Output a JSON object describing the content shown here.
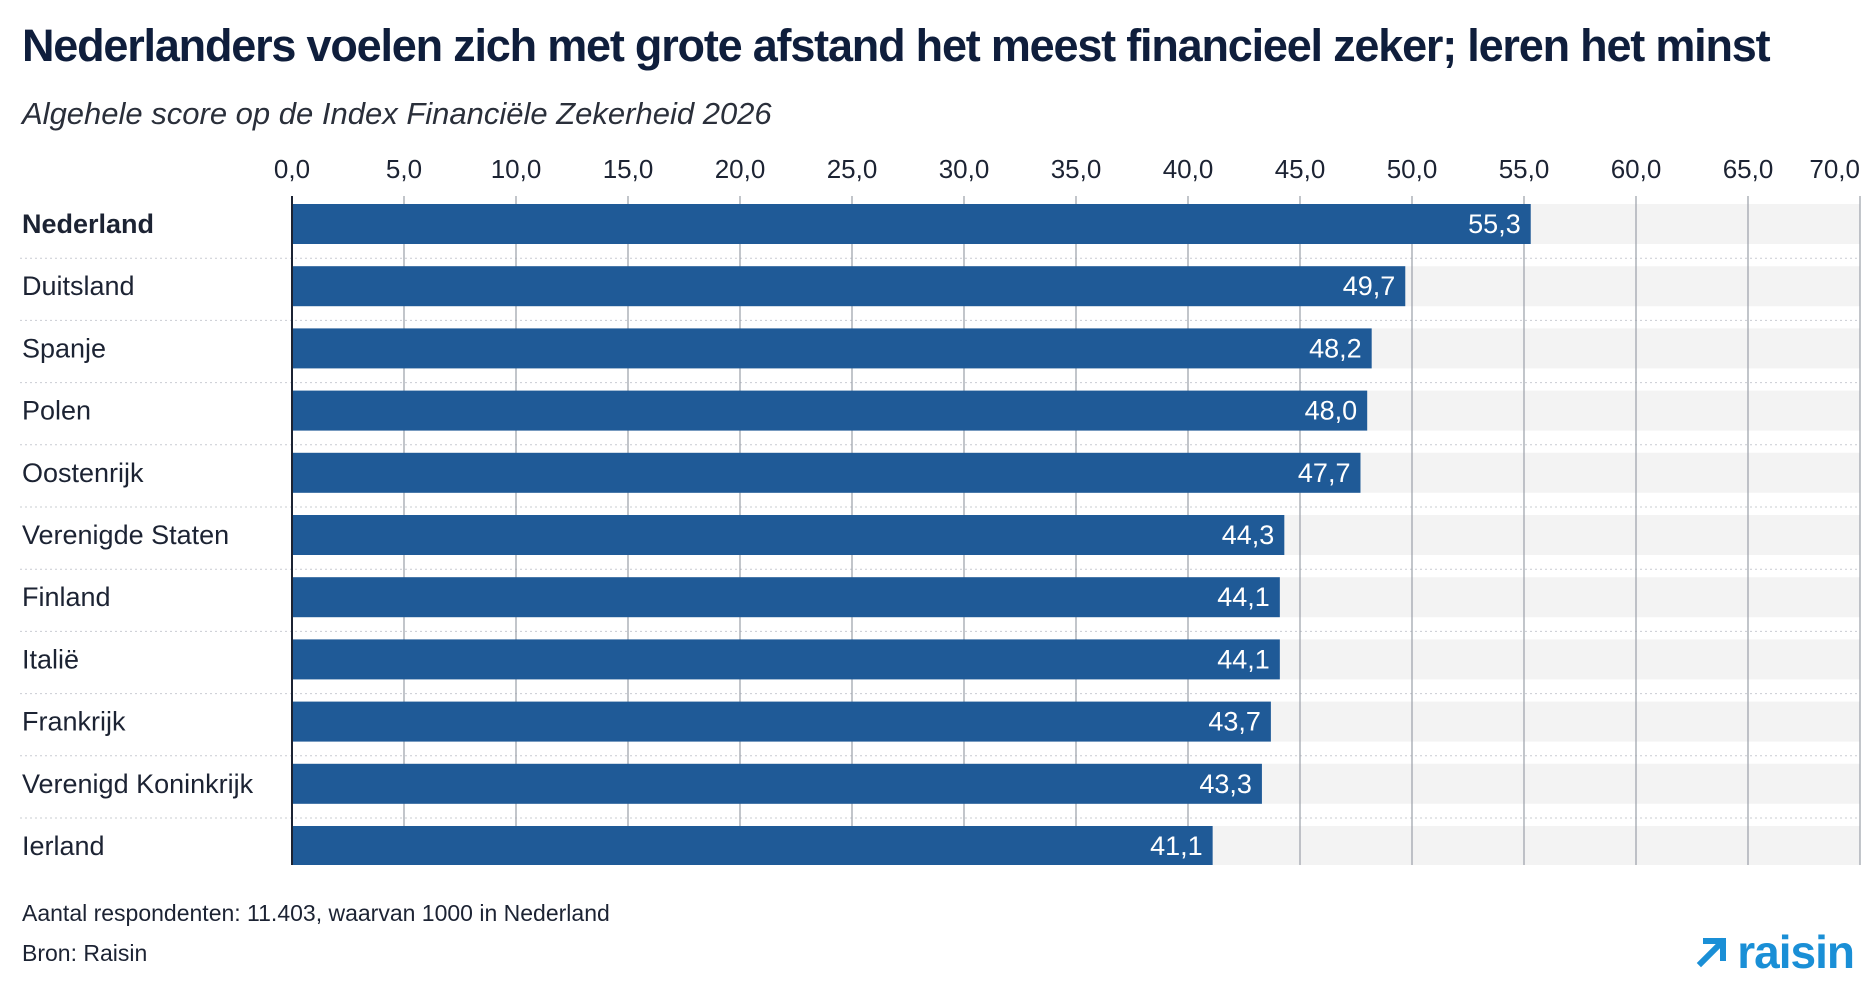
{
  "title": "Nederlanders voelen zich met grote afstand het meest financieel zeker; leren het minst",
  "subtitle": "Algehele score op de Index Financiële Zekerheid 2026",
  "footer": {
    "respondents": "Aantal respondenten: 11.403, waarvan 1000 in Nederland",
    "source": "Bron: Raisin"
  },
  "logo": {
    "text": "raisin",
    "icon": "arrow-up-right-icon"
  },
  "colors": {
    "bar": "#1f5a97",
    "track": "#f3f3f3",
    "gridline": "#9a9fa8",
    "logo": "#1a8fd6"
  },
  "chart_data": {
    "type": "bar",
    "orientation": "horizontal",
    "categories": [
      "Nederland",
      "Duitsland",
      "Spanje",
      "Polen",
      "Oostenrijk",
      "Verenigde Staten",
      "Finland",
      "Italië",
      "Frankrijk",
      "Verenigd Koninkrijk",
      "Ierland"
    ],
    "highlight": "Nederland",
    "values": [
      55.3,
      49.7,
      48.2,
      48.0,
      47.7,
      44.3,
      44.1,
      44.1,
      43.7,
      43.3,
      41.1
    ],
    "value_labels": [
      "55,3",
      "49,7",
      "48,2",
      "48,0",
      "47,7",
      "44,3",
      "44,1",
      "44,1",
      "43,7",
      "43,3",
      "41,1"
    ],
    "xlim": [
      0,
      70
    ],
    "ticks": [
      0,
      5,
      10,
      15,
      20,
      25,
      30,
      35,
      40,
      45,
      50,
      55,
      60,
      65,
      70
    ],
    "tick_labels": [
      "0,0",
      "5,0",
      "10,0",
      "15,0",
      "20,0",
      "25,0",
      "30,0",
      "35,0",
      "40,0",
      "45,0",
      "50,0",
      "55,0",
      "60,0",
      "65,0",
      "70,0"
    ],
    "axis_position": "top",
    "grid": true
  }
}
